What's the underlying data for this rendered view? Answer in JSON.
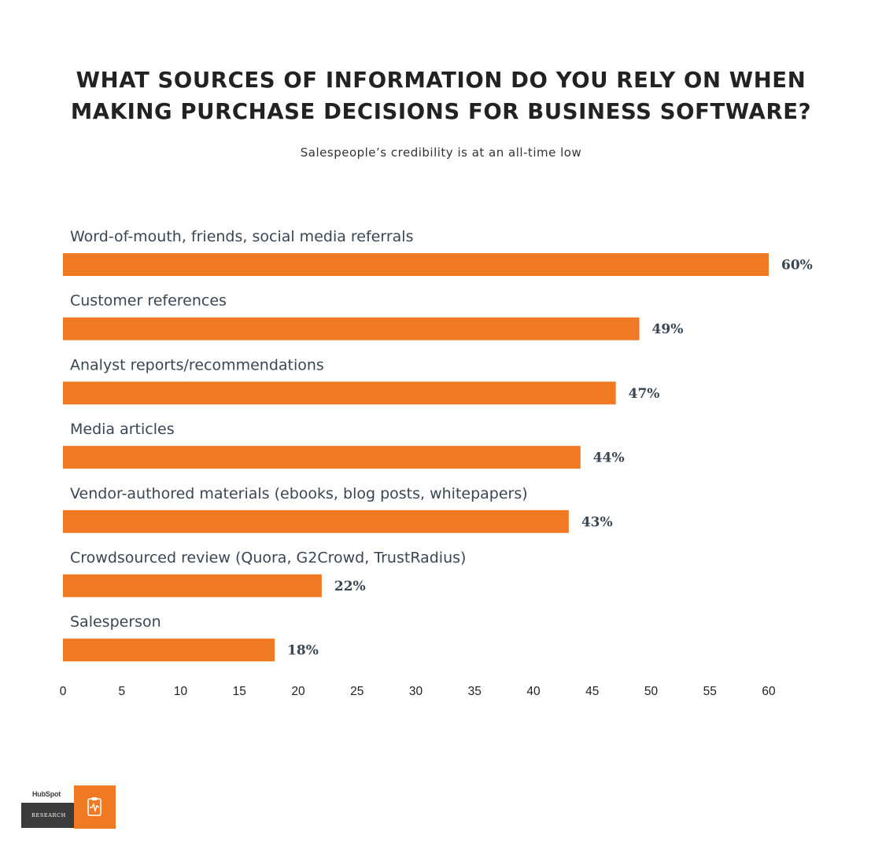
{
  "chart_data": {
    "type": "bar",
    "orientation": "horizontal",
    "title": "WHAT SOURCES OF INFORMATION DO YOU RELY ON WHEN MAKING PURCHASE DECISIONS FOR BUSINESS SOFTWARE?",
    "subtitle": "Salespeople’s credibility is at an all-time low",
    "categories": [
      "Word-of-mouth, friends, social media referrals",
      "Customer references",
      "Analyst reports/recommendations",
      "Media articles",
      "Vendor-authored materials (ebooks, blog posts, whitepapers)",
      "Crowdsourced review (Quora, G2Crowd, TrustRadius)",
      "Salesperson"
    ],
    "values": [
      60,
      49,
      47,
      44,
      43,
      22,
      18
    ],
    "value_labels": [
      "60%",
      "49%",
      "47%",
      "44%",
      "43%",
      "22%",
      "18%"
    ],
    "xlim": [
      0,
      60
    ],
    "x_ticks": [
      "0",
      "5",
      "10",
      "15",
      "20",
      "25",
      "30",
      "35",
      "40",
      "45",
      "50",
      "55",
      "60"
    ],
    "bar_color": "#f07a24",
    "label_color": "#3b4654",
    "grid": false,
    "legend": "none"
  },
  "logo": {
    "brand": "HubSpot",
    "caption": "RESEARCH",
    "icon": "clipboard-pulse-icon",
    "accent_color": "#f07a24",
    "dark_color": "#3b3b3b"
  }
}
